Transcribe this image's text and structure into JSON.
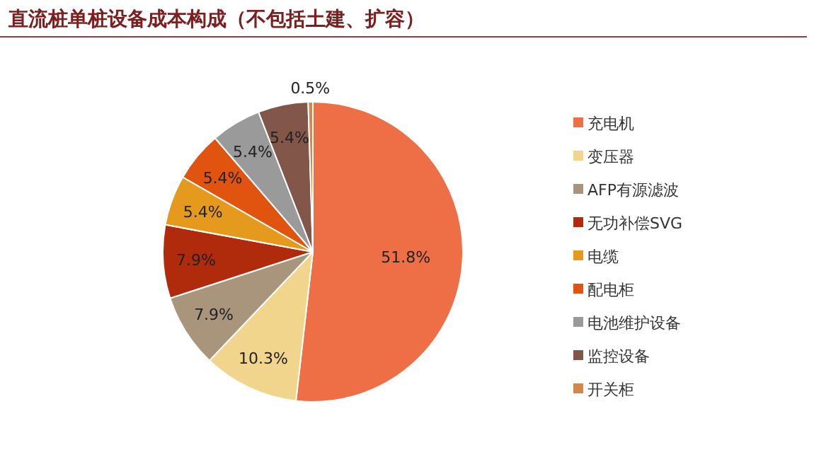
{
  "chart_data": {
    "type": "pie",
    "title": "直流桩单桩设备成本构成（不包括土建、扩容）",
    "categories": [
      "充电机",
      "变压器",
      "AFP有源滤波",
      "无功补偿SVG",
      "电缆",
      "配电柜",
      "电池维护设备",
      "监控设备",
      "开关柜"
    ],
    "values": [
      51.8,
      10.3,
      7.9,
      7.9,
      5.4,
      5.4,
      5.4,
      5.4,
      0.5
    ],
    "colors": [
      "#ee6f45",
      "#f2d58c",
      "#a8957c",
      "#b02a0c",
      "#e59a1e",
      "#e0540f",
      "#9a9a9a",
      "#82574a",
      "#d0894a"
    ],
    "value_labels": [
      "51.8%",
      "10.3%",
      "7.9%",
      "7.9%",
      "5.4%",
      "5.4%",
      "5.4%",
      "5.4%",
      "0.5%"
    ],
    "legend": "right"
  }
}
